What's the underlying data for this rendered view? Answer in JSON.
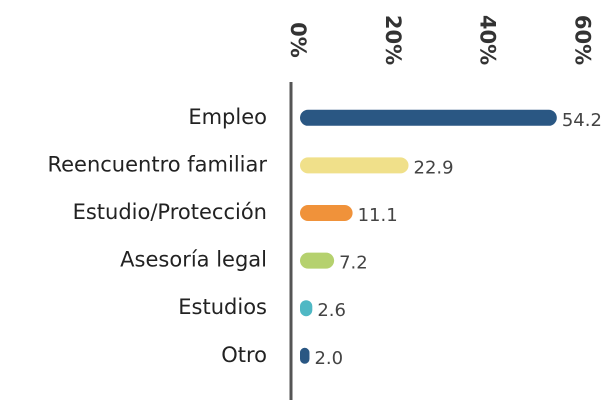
{
  "chart_data": {
    "type": "bar",
    "orientation": "horizontal",
    "categories": [
      "Empleo",
      "Reencuentro familiar",
      "Estudio/Protección",
      "Asesoría legal",
      "Estudios",
      "Otro"
    ],
    "values": [
      54.2,
      22.9,
      11.1,
      7.2,
      2.6,
      2.0
    ],
    "value_labels": [
      "54.2",
      "22.9",
      "11.1",
      "7.2",
      "2.6",
      "2.0"
    ],
    "colors": [
      "#2a5783",
      "#f0e08a",
      "#f0923a",
      "#b5d16e",
      "#4fb8c4",
      "#2a5783"
    ],
    "xlim": [
      0,
      65
    ],
    "xticks": [
      {
        "value": 0,
        "label": "0%"
      },
      {
        "value": 20,
        "label": "20%"
      },
      {
        "value": 40,
        "label": "40%"
      },
      {
        "value": 60,
        "label": "60%"
      }
    ],
    "grid": false
  }
}
